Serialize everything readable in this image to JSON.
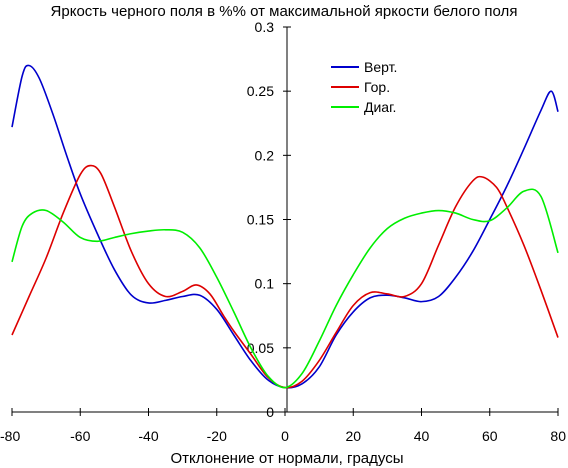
{
  "chart_data": {
    "type": "line",
    "title": "Яркость черного поля в %% от максимальной яркости белого поля",
    "xlabel": "Отклонение от нормали, градусы",
    "ylabel": "",
    "xlim": [
      -80,
      80
    ],
    "ylim": [
      0,
      0.3
    ],
    "xticks": [
      -80,
      -60,
      -40,
      -20,
      0,
      20,
      40,
      60,
      80
    ],
    "yticks": [
      0,
      0.05,
      0.1,
      0.15,
      0.2,
      0.25,
      0.3
    ],
    "xtick_labels": [
      "-80",
      "-60",
      "-40",
      "-20",
      "0",
      "20",
      "40",
      "60",
      "80"
    ],
    "ytick_labels": [
      "0",
      "0.05",
      "0.1",
      "0.15",
      "0.2",
      "0.25",
      "0.3"
    ],
    "grid": false,
    "legend_position": "top-right",
    "series": [
      {
        "name": "Верт.",
        "color": "#0000cc",
        "x": [
          -80,
          -77,
          -75,
          -72,
          -68,
          -64,
          -60,
          -55,
          -50,
          -45,
          -40,
          -35,
          -30,
          -25,
          -20,
          -15,
          -10,
          -5,
          0,
          5,
          10,
          15,
          20,
          25,
          30,
          35,
          40,
          45,
          50,
          55,
          60,
          65,
          70,
          75,
          78,
          80
        ],
        "y": [
          0.222,
          0.262,
          0.27,
          0.26,
          0.232,
          0.2,
          0.17,
          0.139,
          0.111,
          0.091,
          0.085,
          0.087,
          0.09,
          0.091,
          0.08,
          0.06,
          0.04,
          0.025,
          0.019,
          0.022,
          0.035,
          0.06,
          0.078,
          0.089,
          0.091,
          0.089,
          0.086,
          0.09,
          0.105,
          0.125,
          0.15,
          0.176,
          0.205,
          0.235,
          0.25,
          0.234
        ]
      },
      {
        "name": "Гор.",
        "color": "#dd0000",
        "x": [
          -80,
          -75,
          -70,
          -65,
          -60,
          -57,
          -54,
          -50,
          -45,
          -40,
          -35,
          -30,
          -26,
          -22,
          -18,
          -15,
          -10,
          -5,
          0,
          5,
          10,
          15,
          20,
          25,
          30,
          35,
          40,
          45,
          50,
          55,
          58,
          62,
          65,
          70,
          75,
          80
        ],
        "y": [
          0.06,
          0.09,
          0.12,
          0.155,
          0.185,
          0.192,
          0.186,
          0.16,
          0.125,
          0.1,
          0.09,
          0.094,
          0.099,
          0.092,
          0.075,
          0.063,
          0.045,
          0.027,
          0.019,
          0.024,
          0.04,
          0.062,
          0.083,
          0.093,
          0.092,
          0.09,
          0.1,
          0.13,
          0.16,
          0.18,
          0.183,
          0.175,
          0.16,
          0.13,
          0.095,
          0.058
        ]
      },
      {
        "name": "Диаг.",
        "color": "#00ee00",
        "x": [
          -80,
          -77,
          -74,
          -70,
          -65,
          -60,
          -55,
          -50,
          -45,
          -40,
          -35,
          -30,
          -25,
          -20,
          -15,
          -10,
          -5,
          0,
          5,
          10,
          15,
          20,
          25,
          30,
          35,
          40,
          45,
          50,
          55,
          60,
          65,
          70,
          75,
          80
        ],
        "y": [
          0.117,
          0.145,
          0.155,
          0.157,
          0.148,
          0.136,
          0.133,
          0.136,
          0.139,
          0.141,
          0.142,
          0.14,
          0.128,
          0.105,
          0.078,
          0.05,
          0.028,
          0.019,
          0.03,
          0.055,
          0.083,
          0.107,
          0.128,
          0.143,
          0.151,
          0.155,
          0.157,
          0.155,
          0.15,
          0.149,
          0.159,
          0.172,
          0.168,
          0.124
        ]
      }
    ]
  }
}
